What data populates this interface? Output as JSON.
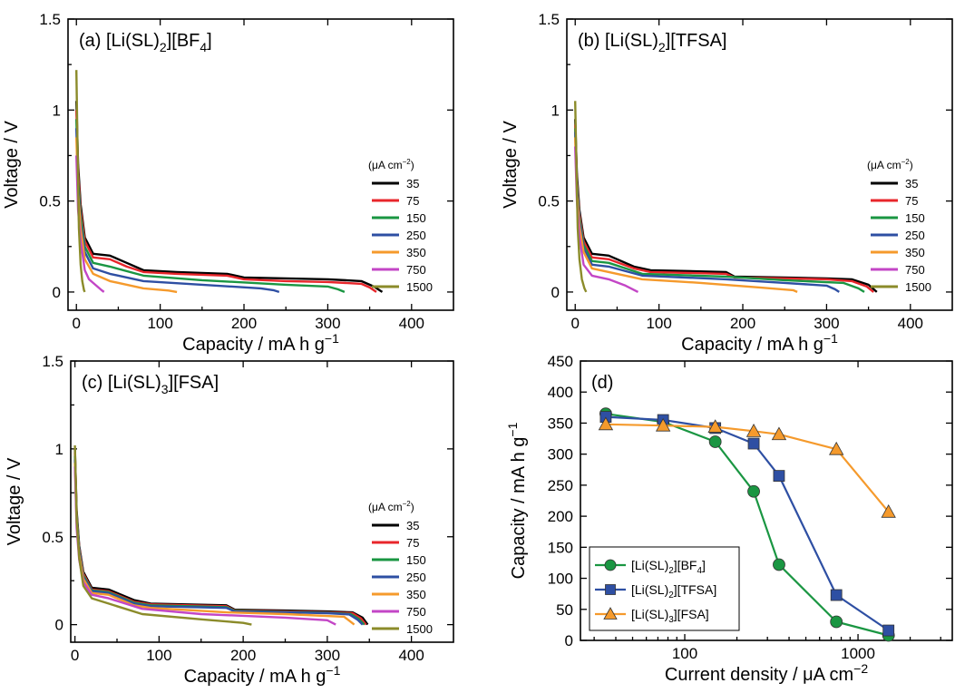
{
  "figure": {
    "panels": [
      {
        "id": "a",
        "title_parts": [
          {
            "t": "(a) [Li(SL)",
            "s": "n"
          },
          {
            "t": "2",
            "s": "sub"
          },
          {
            "t": "][BF",
            "s": "n"
          },
          {
            "t": "4",
            "s": "sub"
          },
          {
            "t": "]",
            "s": "n"
          }
        ],
        "xlabel_parts": [
          {
            "t": "Capacity / mA h g",
            "s": "n"
          },
          {
            "t": "−1",
            "s": "sup"
          }
        ],
        "ylabel": "Voltage / V",
        "legend_unit_parts": [
          {
            "t": "(μA  cm",
            "s": "n"
          },
          {
            "t": "−2",
            "s": "sup"
          },
          {
            "t": ")",
            "s": "n"
          }
        ]
      },
      {
        "id": "b",
        "title_parts": [
          {
            "t": "(b) [Li(SL)",
            "s": "n"
          },
          {
            "t": "2",
            "s": "sub"
          },
          {
            "t": "][TFSA]",
            "s": "n"
          }
        ],
        "xlabel_parts": [
          {
            "t": "Capacity / mA h g",
            "s": "n"
          },
          {
            "t": "−1",
            "s": "sup"
          }
        ],
        "ylabel": "Voltage / V",
        "legend_unit_parts": [
          {
            "t": "(μA  cm",
            "s": "n"
          },
          {
            "t": "−2",
            "s": "sup"
          },
          {
            "t": ")",
            "s": "n"
          }
        ]
      },
      {
        "id": "c",
        "title_parts": [
          {
            "t": "(c) [Li(SL)",
            "s": "n"
          },
          {
            "t": "3",
            "s": "sub"
          },
          {
            "t": "][FSA]",
            "s": "n"
          }
        ],
        "xlabel_parts": [
          {
            "t": "Capacity / mA h g",
            "s": "n"
          },
          {
            "t": "−1",
            "s": "sup"
          }
        ],
        "ylabel": "Voltage / V",
        "legend_unit_parts": [
          {
            "t": "(μA  cm",
            "s": "n"
          },
          {
            "t": "−2",
            "s": "sup"
          },
          {
            "t": ")",
            "s": "n"
          }
        ]
      },
      {
        "id": "d",
        "title_parts": [
          {
            "t": "(d)",
            "s": "n"
          }
        ],
        "xlabel_parts": [
          {
            "t": "Current density / μA cm",
            "s": "n"
          },
          {
            "t": "−2",
            "s": "sup"
          }
        ],
        "ylabel_parts": [
          {
            "t": "Capacity / mA h g",
            "s": "n"
          },
          {
            "t": "−1",
            "s": "sup"
          }
        ],
        "legend_entries": [
          {
            "parts": [
              {
                "t": "[Li(SL)",
                "s": "n"
              },
              {
                "t": "2",
                "s": "sub"
              },
              {
                "t": "][BF",
                "s": "n"
              },
              {
                "t": "4",
                "s": "sub"
              },
              {
                "t": "]",
                "s": "n"
              }
            ]
          },
          {
            "parts": [
              {
                "t": "[Li(SL)",
                "s": "n"
              },
              {
                "t": "2",
                "s": "sub"
              },
              {
                "t": "][TFSA]",
                "s": "n"
              }
            ]
          },
          {
            "parts": [
              {
                "t": "[Li(SL)",
                "s": "n"
              },
              {
                "t": "3",
                "s": "sub"
              },
              {
                "t": "][FSA]",
                "s": "n"
              }
            ]
          }
        ]
      }
    ]
  },
  "chart_data": [
    {
      "type": "line",
      "panel": "a",
      "xlim": [
        -10,
        450
      ],
      "ylim": [
        -0.1,
        1.5
      ],
      "xticks": [
        0,
        100,
        200,
        300,
        400
      ],
      "yticks": [
        0.0,
        0.5,
        1.0,
        1.5
      ],
      "legend_position": "right",
      "series": [
        {
          "name": "35",
          "color": "#000000",
          "x": [
            0,
            2,
            5,
            10,
            20,
            40,
            60,
            80,
            120,
            180,
            200,
            250,
            300,
            340,
            355,
            365
          ],
          "y": [
            1.05,
            0.7,
            0.48,
            0.3,
            0.21,
            0.2,
            0.16,
            0.12,
            0.11,
            0.1,
            0.08,
            0.075,
            0.07,
            0.06,
            0.03,
            0.0
          ]
        },
        {
          "name": "75",
          "color": "#e8262b",
          "x": [
            0,
            2,
            5,
            10,
            20,
            40,
            60,
            80,
            120,
            180,
            200,
            250,
            300,
            340,
            350,
            358
          ],
          "y": [
            1.0,
            0.66,
            0.45,
            0.28,
            0.19,
            0.18,
            0.14,
            0.11,
            0.1,
            0.09,
            0.07,
            0.06,
            0.055,
            0.045,
            0.025,
            0.0
          ]
        },
        {
          "name": "150",
          "color": "#1a9642",
          "x": [
            0,
            2,
            5,
            10,
            20,
            40,
            80,
            150,
            250,
            300,
            312,
            320
          ],
          "y": [
            0.95,
            0.62,
            0.42,
            0.25,
            0.16,
            0.14,
            0.09,
            0.065,
            0.04,
            0.03,
            0.015,
            0.0
          ]
        },
        {
          "name": "250",
          "color": "#2e4fa3",
          "x": [
            0,
            2,
            5,
            10,
            20,
            40,
            80,
            150,
            220,
            235,
            242
          ],
          "y": [
            0.9,
            0.58,
            0.38,
            0.22,
            0.13,
            0.1,
            0.06,
            0.04,
            0.02,
            0.01,
            0.0
          ]
        },
        {
          "name": "350",
          "color": "#f59a2c",
          "x": [
            0,
            2,
            5,
            10,
            20,
            40,
            80,
            110,
            120
          ],
          "y": [
            0.85,
            0.55,
            0.35,
            0.18,
            0.1,
            0.06,
            0.02,
            0.008,
            0.0
          ]
        },
        {
          "name": "750",
          "color": "#c346c6",
          "x": [
            0,
            2,
            5,
            10,
            15,
            20,
            30,
            33
          ],
          "y": [
            0.75,
            0.45,
            0.28,
            0.12,
            0.07,
            0.05,
            0.01,
            0.0
          ]
        },
        {
          "name": "1500",
          "color": "#8b8b2a",
          "x": [
            0,
            1,
            2,
            3,
            5,
            7,
            9,
            10
          ],
          "y": [
            1.22,
            0.9,
            0.6,
            0.35,
            0.15,
            0.06,
            0.01,
            0.0
          ]
        }
      ]
    },
    {
      "type": "line",
      "panel": "b",
      "xlim": [
        -10,
        450
      ],
      "ylim": [
        -0.1,
        1.5
      ],
      "xticks": [
        0,
        100,
        200,
        300,
        400
      ],
      "yticks": [
        0.0,
        0.5,
        1.0,
        1.5
      ],
      "legend_position": "right",
      "series": [
        {
          "name": "35",
          "color": "#000000",
          "x": [
            0,
            2,
            5,
            10,
            20,
            40,
            70,
            90,
            180,
            190,
            250,
            300,
            330,
            350,
            360
          ],
          "y": [
            0.95,
            0.65,
            0.45,
            0.3,
            0.21,
            0.2,
            0.14,
            0.12,
            0.11,
            0.085,
            0.08,
            0.075,
            0.07,
            0.04,
            0.0
          ]
        },
        {
          "name": "75",
          "color": "#e8262b",
          "x": [
            0,
            2,
            5,
            10,
            20,
            40,
            70,
            90,
            180,
            190,
            250,
            300,
            330,
            348,
            356
          ],
          "y": [
            0.92,
            0.62,
            0.43,
            0.28,
            0.19,
            0.18,
            0.13,
            0.11,
            0.1,
            0.08,
            0.075,
            0.07,
            0.06,
            0.03,
            0.0
          ]
        },
        {
          "name": "150",
          "color": "#1a9642",
          "x": [
            0,
            2,
            5,
            10,
            20,
            40,
            80,
            180,
            250,
            320,
            338,
            345
          ],
          "y": [
            0.9,
            0.6,
            0.41,
            0.26,
            0.17,
            0.16,
            0.1,
            0.085,
            0.065,
            0.05,
            0.02,
            0.0
          ]
        },
        {
          "name": "250",
          "color": "#2e4fa3",
          "x": [
            0,
            2,
            5,
            10,
            20,
            40,
            80,
            180,
            250,
            300,
            310,
            315
          ],
          "y": [
            0.88,
            0.58,
            0.39,
            0.24,
            0.15,
            0.14,
            0.09,
            0.07,
            0.05,
            0.035,
            0.015,
            0.0
          ]
        },
        {
          "name": "350",
          "color": "#f59a2c",
          "x": [
            0,
            2,
            5,
            10,
            20,
            40,
            80,
            150,
            220,
            260,
            265
          ],
          "y": [
            0.85,
            0.55,
            0.36,
            0.22,
            0.13,
            0.11,
            0.07,
            0.05,
            0.025,
            0.01,
            0.0
          ]
        },
        {
          "name": "750",
          "color": "#c346c6",
          "x": [
            0,
            2,
            5,
            10,
            20,
            40,
            60,
            75
          ],
          "y": [
            0.8,
            0.5,
            0.3,
            0.15,
            0.09,
            0.07,
            0.035,
            0.0
          ]
        },
        {
          "name": "1500",
          "color": "#8b8b2a",
          "x": [
            0,
            1,
            2,
            3,
            5,
            8,
            11,
            13
          ],
          "y": [
            1.05,
            0.8,
            0.55,
            0.35,
            0.18,
            0.07,
            0.02,
            0.0
          ]
        }
      ]
    },
    {
      "type": "line",
      "panel": "c",
      "xlim": [
        -5,
        450
      ],
      "ylim": [
        -0.1,
        1.5
      ],
      "xticks": [
        0,
        100,
        200,
        300,
        400
      ],
      "yticks": [
        0.0,
        0.5,
        1.0,
        1.5
      ],
      "legend_position": "right",
      "series": [
        {
          "name": "35",
          "color": "#000000",
          "x": [
            0,
            2,
            5,
            10,
            20,
            40,
            70,
            90,
            180,
            190,
            250,
            300,
            330,
            342,
            348
          ],
          "y": [
            1.0,
            0.65,
            0.45,
            0.3,
            0.21,
            0.2,
            0.14,
            0.12,
            0.11,
            0.085,
            0.08,
            0.075,
            0.07,
            0.04,
            0.0
          ]
        },
        {
          "name": "75",
          "color": "#e8262b",
          "x": [
            0,
            2,
            5,
            10,
            20,
            40,
            70,
            90,
            180,
            190,
            250,
            300,
            330,
            340,
            346
          ],
          "y": [
            0.98,
            0.63,
            0.44,
            0.29,
            0.2,
            0.19,
            0.13,
            0.115,
            0.105,
            0.08,
            0.075,
            0.07,
            0.065,
            0.035,
            0.0
          ]
        },
        {
          "name": "150",
          "color": "#1a9642",
          "x": [
            0,
            2,
            5,
            10,
            20,
            40,
            70,
            90,
            180,
            190,
            250,
            300,
            328,
            338,
            344
          ],
          "y": [
            0.96,
            0.62,
            0.43,
            0.28,
            0.195,
            0.185,
            0.125,
            0.11,
            0.1,
            0.078,
            0.072,
            0.067,
            0.06,
            0.03,
            0.0
          ]
        },
        {
          "name": "250",
          "color": "#2e4fa3",
          "x": [
            0,
            2,
            5,
            10,
            20,
            40,
            70,
            90,
            180,
            190,
            250,
            300,
            326,
            336,
            342
          ],
          "y": [
            0.94,
            0.6,
            0.42,
            0.27,
            0.19,
            0.18,
            0.12,
            0.105,
            0.095,
            0.075,
            0.07,
            0.065,
            0.058,
            0.028,
            0.0
          ]
        },
        {
          "name": "350",
          "color": "#f59a2c",
          "x": [
            0,
            2,
            5,
            10,
            20,
            40,
            70,
            90,
            180,
            250,
            320,
            332
          ],
          "y": [
            0.92,
            0.58,
            0.4,
            0.26,
            0.18,
            0.17,
            0.11,
            0.095,
            0.07,
            0.06,
            0.045,
            0.0
          ]
        },
        {
          "name": "750",
          "color": "#c346c6",
          "x": [
            0,
            2,
            5,
            10,
            20,
            40,
            80,
            150,
            250,
            300,
            310
          ],
          "y": [
            0.9,
            0.55,
            0.37,
            0.24,
            0.17,
            0.15,
            0.09,
            0.06,
            0.04,
            0.025,
            0.0
          ]
        },
        {
          "name": "1500",
          "color": "#8b8b2a",
          "x": [
            0,
            2,
            5,
            10,
            20,
            40,
            80,
            150,
            200,
            210
          ],
          "y": [
            1.02,
            0.6,
            0.38,
            0.22,
            0.15,
            0.12,
            0.06,
            0.03,
            0.01,
            0.0
          ]
        }
      ]
    },
    {
      "type": "line",
      "panel": "d",
      "xscale": "log",
      "xlim": [
        25,
        3500
      ],
      "ylim": [
        0,
        450
      ],
      "xticks": [
        100,
        1000
      ],
      "xtick_labels": [
        "100",
        "1000"
      ],
      "yticks": [
        0,
        50,
        100,
        150,
        200,
        250,
        300,
        350,
        400,
        450
      ],
      "legend_position": "bottom-left",
      "series": [
        {
          "name": "[Li(SL)2][BF4]",
          "color": "#1a9642",
          "marker": "circle",
          "x": [
            35,
            75,
            150,
            250,
            350,
            750,
            1500
          ],
          "y": [
            365,
            352,
            320,
            240,
            122,
            30,
            8
          ]
        },
        {
          "name": "[Li(SL)2][TFSA]",
          "color": "#2e4fa3",
          "marker": "square",
          "x": [
            35,
            75,
            150,
            250,
            350,
            750,
            1500
          ],
          "y": [
            360,
            355,
            342,
            317,
            265,
            73,
            16
          ]
        },
        {
          "name": "[Li(SL)3][FSA]",
          "color": "#f59a2c",
          "marker": "triangle",
          "x": [
            35,
            75,
            150,
            250,
            350,
            750,
            1500
          ],
          "y": [
            348,
            346,
            344,
            337,
            332,
            308,
            207
          ]
        }
      ]
    }
  ]
}
